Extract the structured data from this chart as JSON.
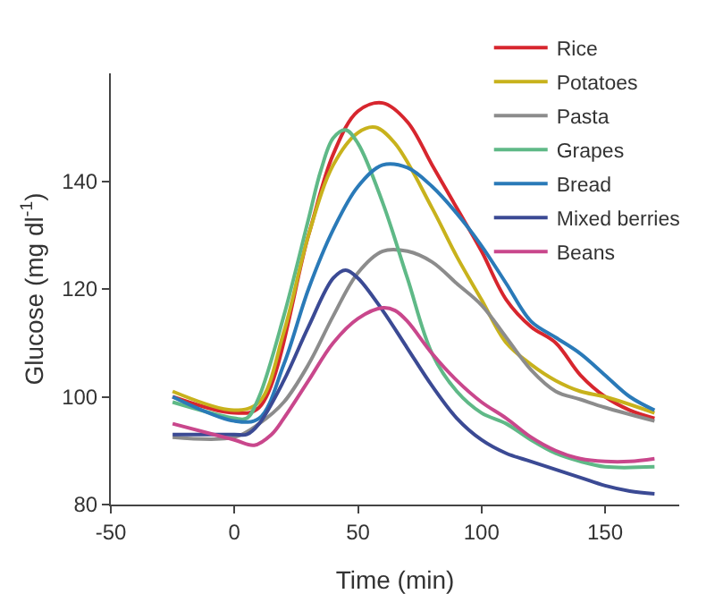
{
  "chart_data": {
    "type": "line",
    "xlabel": "Time (min)",
    "ylabel": "Glucose (mg dl$^{-1}$)",
    "xlim": [
      -50,
      180
    ],
    "xticks": [
      -50,
      0,
      50,
      100,
      150
    ],
    "ylim": [
      80,
      160
    ],
    "yticks": [
      80,
      100,
      120,
      140
    ],
    "grid": false,
    "legend": "top right",
    "marker": "none",
    "line_style": "solid",
    "series": [
      {
        "name": "Rice",
        "color": "#d7262e",
        "x": [
          -25,
          0,
          10,
          20,
          30,
          40,
          50,
          60,
          70,
          80,
          90,
          100,
          110,
          120,
          130,
          140,
          150,
          160,
          170
        ],
        "values": [
          100,
          97,
          98,
          null,
          130,
          145,
          153,
          154.5,
          151,
          143,
          135,
          127,
          118,
          113,
          110,
          104,
          100,
          97.5,
          96
        ]
      },
      {
        "name": "Potatoes",
        "color": "#c8b21c",
        "x": [
          -25,
          0,
          10,
          20,
          30,
          40,
          50,
          57,
          65,
          80,
          90,
          100,
          110,
          120,
          130,
          140,
          150,
          170
        ],
        "values": [
          101,
          97.5,
          99,
          112,
          130,
          143,
          149,
          150,
          147,
          135,
          126,
          118,
          110,
          106,
          103,
          101,
          100,
          97
        ]
      },
      {
        "name": "Pasta",
        "color": "#8c8c8c",
        "x": [
          -25,
          0,
          10,
          20,
          30,
          40,
          50,
          60,
          70,
          80,
          90,
          100,
          110,
          120,
          130,
          140,
          150,
          170
        ],
        "values": [
          92.5,
          92.5,
          95,
          99,
          106,
          115,
          123,
          127,
          127,
          125,
          121,
          117,
          111,
          105,
          101,
          99.5,
          98,
          95.5
        ]
      },
      {
        "name": "Grapes",
        "color": "#5fb987",
        "x": [
          -25,
          0,
          5,
          10,
          20,
          30,
          35,
          40,
          45,
          50,
          60,
          70,
          80,
          90,
          100,
          110,
          120,
          130,
          140,
          150,
          170
        ],
        "values": [
          99,
          96,
          96,
          100,
          115,
          133,
          142,
          148,
          149.5,
          147,
          136,
          122,
          108,
          101,
          97,
          95,
          92,
          89.5,
          88,
          87,
          87
        ]
      },
      {
        "name": "Bread",
        "color": "#2a7ab8",
        "x": [
          -25,
          0,
          10,
          20,
          30,
          40,
          50,
          60,
          70,
          80,
          90,
          100,
          110,
          120,
          130,
          140,
          150,
          160,
          170
        ],
        "values": [
          100,
          95.5,
          96,
          106,
          120,
          131,
          139,
          143,
          142.5,
          139,
          134,
          128,
          121,
          114,
          111,
          108,
          104,
          100,
          97.5
        ]
      },
      {
        "name": "Mixed berries",
        "color": "#3b4a94",
        "x": [
          -25,
          0,
          5,
          10,
          20,
          30,
          40,
          45,
          50,
          60,
          70,
          80,
          90,
          100,
          110,
          120,
          130,
          140,
          150,
          160,
          170
        ],
        "values": [
          93,
          93,
          93,
          95,
          103,
          113,
          122,
          123.5,
          122,
          116,
          109,
          102,
          96,
          92,
          89.5,
          88,
          86.5,
          85,
          83.5,
          82.5,
          82
        ]
      },
      {
        "name": "Beans",
        "color": "#c9478c",
        "x": [
          -25,
          0,
          8,
          15,
          20,
          30,
          40,
          50,
          60,
          65,
          70,
          80,
          90,
          100,
          110,
          120,
          130,
          140,
          150,
          160,
          170
        ],
        "values": [
          95,
          92,
          91,
          93,
          96,
          103,
          110,
          114.5,
          116.5,
          116,
          114,
          108,
          103,
          99,
          96,
          92.5,
          90,
          88.5,
          88,
          88,
          88.5
        ]
      }
    ]
  }
}
